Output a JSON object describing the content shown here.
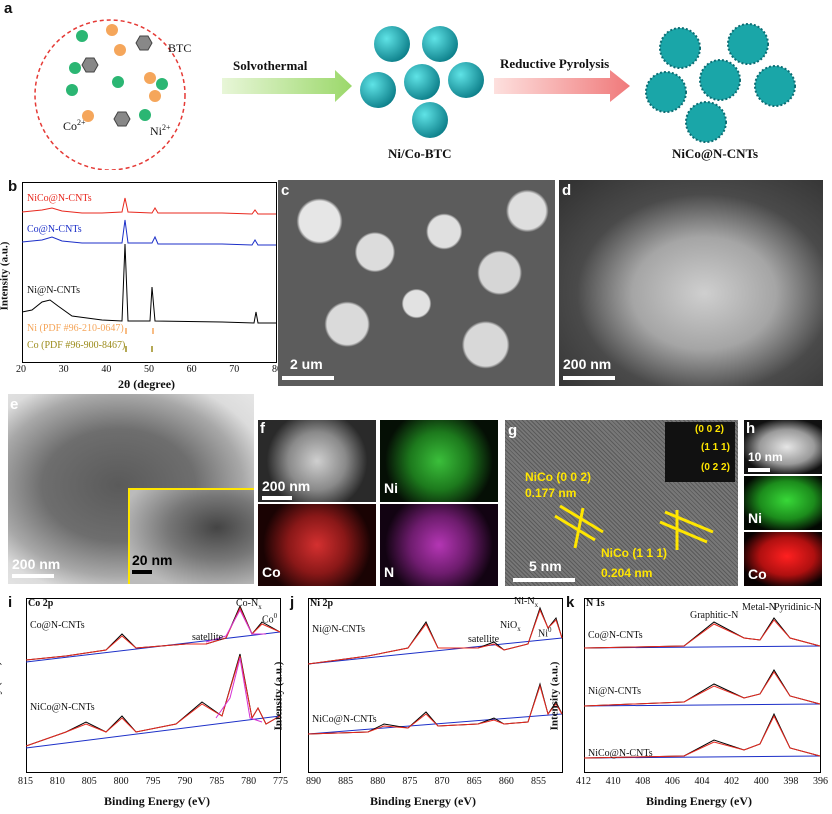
{
  "panel_a": {
    "label": "a",
    "btc": "BTC",
    "co": "Co",
    "co_sup": "2+",
    "ni": "Ni",
    "ni_sup": "2+",
    "step1": "Solvothermal",
    "step2": "Reductive Pyrolysis",
    "product1": "Ni/Co-BTC",
    "product2": "NiCo@N-CNTs"
  },
  "panel_b": {
    "label": "b",
    "ylabel": "Intensity (a.u.)",
    "xlabel": "2θ (degree)",
    "xticks": [
      "20",
      "30",
      "40",
      "50",
      "60",
      "70",
      "80"
    ],
    "series_labels": [
      "NiCo@N-CNTs",
      "Co@N-CNTs",
      "Ni@N-CNTs"
    ],
    "ref_ni": "Ni (PDF #96-210-0647)",
    "ref_co": "Co (PDF #96-900-8467)"
  },
  "panel_c": {
    "label": "c",
    "scale": "2 um"
  },
  "panel_d": {
    "label": "d",
    "scale": "200 nm"
  },
  "panel_e": {
    "label": "e",
    "scale": "200 nm",
    "inset_scale": "20 nm"
  },
  "panel_f": {
    "label": "f",
    "scale": "200 nm",
    "ni": "Ni",
    "co": "Co",
    "n": "N"
  },
  "panel_g": {
    "label": "g",
    "fft1": "(0 0 2)",
    "fft2": "(1 1 1)",
    "fft3": "(0 2 2)",
    "plane1": "NiCo (0 0 2)",
    "d1": "0.177 nm",
    "plane2": "NiCo (1 1 1)",
    "d2": "0.204 nm",
    "scale": "5 nm"
  },
  "panel_h": {
    "label": "h",
    "scale": "10 nm",
    "ni": "Ni",
    "co": "Co"
  },
  "panel_i": {
    "label": "i",
    "title": "Co 2p",
    "top": "Co@N-CNTs",
    "bottom": "NiCo@N-CNTs",
    "peak1": "Co-N",
    "peak1_sub": "x",
    "sat": "satellite",
    "peak2": "Co",
    "peak2_sup": "0",
    "xticks": [
      "815",
      "810",
      "805",
      "800",
      "795",
      "790",
      "785",
      "780",
      "775"
    ]
  },
  "panel_j": {
    "label": "j",
    "title": "Ni 2p",
    "top": "Ni@N-CNTs",
    "bottom": "NiCo@N-CNTs",
    "peak1": "Ni-N",
    "peak1_sub": "x",
    "peak2": "NiO",
    "peak2_sub": "x",
    "peak3": "Ni",
    "peak3_sup": "0",
    "sat": "satellite",
    "xticks": [
      "890",
      "885",
      "880",
      "875",
      "870",
      "865",
      "860",
      "855"
    ]
  },
  "panel_k": {
    "label": "k",
    "title": "N 1s",
    "s1": "Co@N-CNTs",
    "s2": "Ni@N-CNTs",
    "s3": "NiCo@N-CNTs",
    "p1": "Graphitic-N",
    "p2": "Metal-N",
    "p3": "Pyridinic-N",
    "xticks": [
      "412",
      "410",
      "408",
      "406",
      "404",
      "402",
      "400",
      "398",
      "396"
    ]
  },
  "common": {
    "ylabel": "Intensity (a.u.)",
    "xlabel": "Binding Energy (eV)"
  },
  "colors": {
    "red": "#e8281e",
    "blue": "#1c2fc8",
    "teal": "#1aa6a8",
    "orange": "#f5a65b",
    "green": "#2bb673",
    "yellow": "#ffe600"
  }
}
